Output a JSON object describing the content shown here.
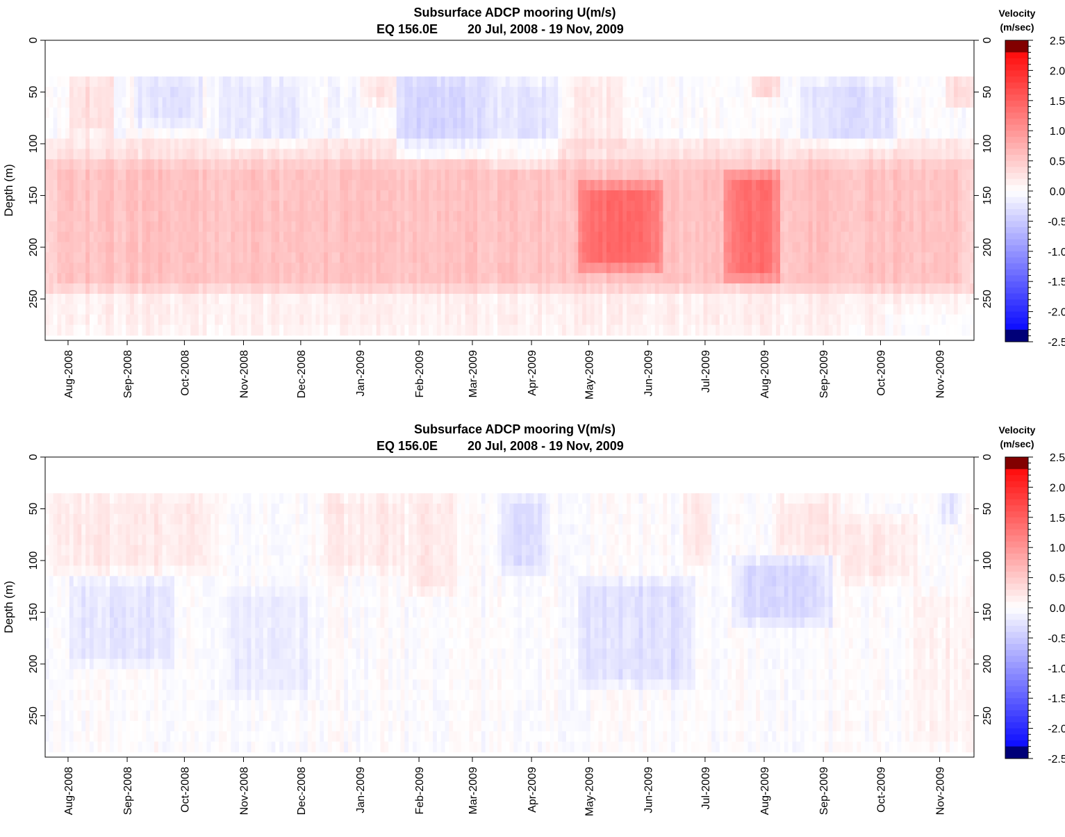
{
  "chart_data": [
    {
      "type": "heatmap",
      "title": "Subsurface ADCP mooring U(m/s)",
      "subtitle_location": "EQ 156.0E",
      "subtitle_dates": "20 Jul, 2008 - 19 Nov, 2009",
      "ylabel": "Depth (m)",
      "xlabel": "",
      "xlim": [
        "2008-07-20",
        "2009-11-19"
      ],
      "ylim": [
        0,
        290
      ],
      "y_reversed": true,
      "x_ticks": [
        "Aug-2008",
        "Sep-2008",
        "Oct-2008",
        "Nov-2008",
        "Dec-2008",
        "Jan-2009",
        "Feb-2009",
        "Mar-2009",
        "Apr-2009",
        "May-2009",
        "Jun-2009",
        "Jul-2009",
        "Aug-2009",
        "Sep-2009",
        "Oct-2009",
        "Nov-2009"
      ],
      "x_tick_dates": [
        "2008-08-01",
        "2008-09-01",
        "2008-10-01",
        "2008-11-01",
        "2008-12-01",
        "2009-01-01",
        "2009-02-01",
        "2009-03-01",
        "2009-04-01",
        "2009-05-01",
        "2009-06-01",
        "2009-07-01",
        "2009-08-01",
        "2009-09-01",
        "2009-10-01",
        "2009-11-01"
      ],
      "y_ticks": [
        "0",
        "50",
        "100",
        "150",
        "200",
        "250"
      ],
      "y_tick_values": [
        0,
        50,
        100,
        150,
        200,
        250
      ],
      "depth_range_data": [
        35,
        285
      ],
      "colorbar": {
        "title_line1": "Velocity",
        "title_line2": "(m/sec)",
        "min": -2.5,
        "max": 2.5,
        "labels": [
          "2.5",
          "2.0",
          "1.5",
          "1.0",
          "0.5",
          "0.0",
          "-0.5",
          "-1.0",
          "-1.5",
          "-2.0",
          "-2.5"
        ],
        "label_values": [
          2.5,
          2.0,
          1.5,
          1.0,
          0.5,
          0.0,
          -0.5,
          -1.0,
          -1.5,
          -2.0,
          -2.5
        ]
      },
      "features": [
        {
          "time": [
            "2008-07-20",
            "2009-11-19"
          ],
          "depth": [
            120,
            240
          ],
          "value": 0.6
        },
        {
          "time": [
            "2008-07-20",
            "2009-11-19"
          ],
          "depth": [
            95,
            120
          ],
          "value": 0.3
        },
        {
          "time": [
            "2008-07-20",
            "2009-11-19"
          ],
          "depth": [
            240,
            285
          ],
          "value": 0.15
        },
        {
          "time": [
            "2008-08-01",
            "2008-08-25"
          ],
          "depth": [
            35,
            90
          ],
          "value": 0.35
        },
        {
          "time": [
            "2008-09-05",
            "2008-10-10"
          ],
          "depth": [
            35,
            80
          ],
          "value": -0.3
        },
        {
          "time": [
            "2008-10-20",
            "2008-12-05"
          ],
          "depth": [
            35,
            105
          ],
          "value": -0.2
        },
        {
          "time": [
            "2008-12-15",
            "2009-01-10"
          ],
          "depth": [
            35,
            90
          ],
          "value": -0.1
        },
        {
          "time": [
            "2009-01-01",
            "2009-01-20"
          ],
          "depth": [
            35,
            60
          ],
          "value": 0.3
        },
        {
          "time": [
            "2009-01-20",
            "2009-03-10"
          ],
          "depth": [
            35,
            115
          ],
          "value": -0.4
        },
        {
          "time": [
            "2009-03-10",
            "2009-04-15"
          ],
          "depth": [
            40,
            125
          ],
          "value": -0.25
        },
        {
          "time": [
            "2009-04-20",
            "2009-05-20"
          ],
          "depth": [
            35,
            100
          ],
          "value": 0.2
        },
        {
          "time": [
            "2009-04-25",
            "2009-06-10"
          ],
          "depth": [
            140,
            220
          ],
          "value": 0.85
        },
        {
          "time": [
            "2009-07-10",
            "2009-08-10"
          ],
          "depth": [
            130,
            230
          ],
          "value": 0.8
        },
        {
          "time": [
            "2009-07-25",
            "2009-08-10"
          ],
          "depth": [
            35,
            55
          ],
          "value": 0.5
        },
        {
          "time": [
            "2009-08-20",
            "2009-10-10"
          ],
          "depth": [
            40,
            100
          ],
          "value": -0.3
        },
        {
          "time": [
            "2009-10-01",
            "2009-11-19"
          ],
          "depth": [
            260,
            285
          ],
          "value": -0.15
        },
        {
          "time": [
            "2009-11-05",
            "2009-11-19"
          ],
          "depth": [
            35,
            65
          ],
          "value": 0.45
        }
      ]
    },
    {
      "type": "heatmap",
      "title": "Subsurface ADCP mooring V(m/s)",
      "subtitle_location": "EQ 156.0E",
      "subtitle_dates": "20 Jul, 2008 - 19 Nov, 2009",
      "ylabel": "Depth (m)",
      "xlabel": "",
      "xlim": [
        "2008-07-20",
        "2009-11-19"
      ],
      "ylim": [
        0,
        290
      ],
      "y_reversed": true,
      "x_ticks": [
        "Aug-2008",
        "Sep-2008",
        "Oct-2008",
        "Nov-2008",
        "Dec-2008",
        "Jan-2009",
        "Feb-2009",
        "Mar-2009",
        "Apr-2009",
        "May-2009",
        "Jun-2009",
        "Jul-2009",
        "Aug-2009",
        "Sep-2009",
        "Oct-2009",
        "Nov-2009"
      ],
      "x_tick_dates": [
        "2008-08-01",
        "2008-09-01",
        "2008-10-01",
        "2008-11-01",
        "2008-12-01",
        "2009-01-01",
        "2009-02-01",
        "2009-03-01",
        "2009-04-01",
        "2009-05-01",
        "2009-06-01",
        "2009-07-01",
        "2009-08-01",
        "2009-09-01",
        "2009-10-01",
        "2009-11-01"
      ],
      "y_ticks": [
        "0",
        "50",
        "100",
        "150",
        "200",
        "250"
      ],
      "y_tick_values": [
        0,
        50,
        100,
        150,
        200,
        250
      ],
      "depth_range_data": [
        35,
        285
      ],
      "colorbar": {
        "title_line1": "Velocity",
        "title_line2": "(m/sec)",
        "min": -2.5,
        "max": 2.5,
        "labels": [
          "2.5",
          "2.0",
          "1.5",
          "1.0",
          "0.5",
          "0.0",
          "-0.5",
          "-1.0",
          "-1.5",
          "-2.0",
          "-2.5"
        ],
        "label_values": [
          2.5,
          2.0,
          1.5,
          1.0,
          0.5,
          0.0,
          -0.5,
          -1.0,
          -1.5,
          -2.0,
          -2.5
        ]
      },
      "features": [
        {
          "time": [
            "2008-07-20",
            "2008-10-20"
          ],
          "depth": [
            35,
            110
          ],
          "value": 0.2
        },
        {
          "time": [
            "2008-08-01",
            "2008-09-25"
          ],
          "depth": [
            120,
            200
          ],
          "value": -0.25
        },
        {
          "time": [
            "2008-10-20",
            "2008-12-10"
          ],
          "depth": [
            130,
            230
          ],
          "value": -0.15
        },
        {
          "time": [
            "2008-12-10",
            "2009-01-25"
          ],
          "depth": [
            35,
            110
          ],
          "value": 0.2
        },
        {
          "time": [
            "2009-01-25",
            "2009-02-20"
          ],
          "depth": [
            35,
            130
          ],
          "value": 0.25
        },
        {
          "time": [
            "2009-03-15",
            "2009-04-10"
          ],
          "depth": [
            40,
            110
          ],
          "value": -0.3
        },
        {
          "time": [
            "2009-04-25",
            "2009-06-25"
          ],
          "depth": [
            120,
            220
          ],
          "value": -0.3
        },
        {
          "time": [
            "2009-06-20",
            "2009-07-05"
          ],
          "depth": [
            35,
            100
          ],
          "value": 0.25
        },
        {
          "time": [
            "2009-07-15",
            "2009-09-05"
          ],
          "depth": [
            100,
            160
          ],
          "value": -0.35
        },
        {
          "time": [
            "2009-08-05",
            "2009-09-10"
          ],
          "depth": [
            40,
            95
          ],
          "value": 0.25
        },
        {
          "time": [
            "2009-09-10",
            "2009-10-20"
          ],
          "depth": [
            60,
            120
          ],
          "value": 0.2
        },
        {
          "time": [
            "2009-10-15",
            "2009-11-19"
          ],
          "depth": [
            130,
            280
          ],
          "value": 0.12
        },
        {
          "time": [
            "2009-11-02",
            "2009-11-10"
          ],
          "depth": [
            35,
            60
          ],
          "value": -0.35
        }
      ]
    }
  ]
}
